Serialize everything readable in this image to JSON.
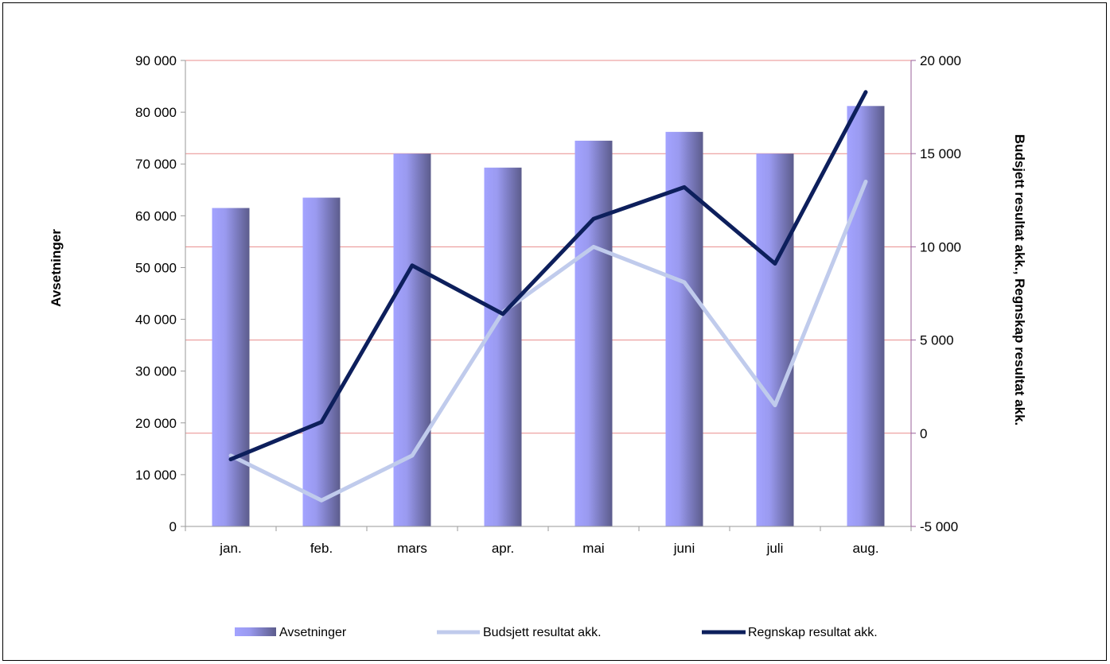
{
  "chart_data": {
    "type": "bar",
    "categories": [
      "jan.",
      "feb.",
      "mars",
      "apr.",
      "mai",
      "juni",
      "juli",
      "aug."
    ],
    "series": [
      {
        "name": "Avsetninger",
        "type": "bar",
        "axis": "left",
        "values": [
          61500,
          63500,
          72000,
          69300,
          74500,
          76200,
          72000,
          81200
        ]
      },
      {
        "name": "Budsjett resultat akk.",
        "type": "line",
        "axis": "right",
        "values": [
          -1200,
          -3600,
          -1200,
          6500,
          10000,
          8100,
          1500,
          13500
        ]
      },
      {
        "name": "Regnskap resultat akk.",
        "type": "line",
        "axis": "right",
        "values": [
          -1400,
          600,
          9000,
          6400,
          11500,
          13200,
          9100,
          18300
        ]
      }
    ],
    "y_left": {
      "label": "Avsetninger",
      "min": 0,
      "max": 90000,
      "step": 10000,
      "tick_labels": [
        "0",
        "10 000",
        "20 000",
        "30 000",
        "40 000",
        "50 000",
        "60 000",
        "70 000",
        "80 000",
        "90 000"
      ]
    },
    "y_right": {
      "label": "Budsjett resultat akk., Regnskap resultat akk.",
      "min": -5000,
      "max": 20000,
      "step": 5000,
      "tick_labels": [
        "-5 000",
        "0",
        "5 000",
        "10 000",
        "15 000",
        "20 000"
      ]
    },
    "gridlines": "right-axis, red",
    "legend_position": "bottom",
    "colors": {
      "bar_light": "#a3a3ff",
      "bar_dark": "#5c5c8c",
      "budsjett": "#c0cbec",
      "regnskap": "#0d1f5c",
      "grid": "#e88c8c",
      "right_axis": "#9a5f9a"
    }
  }
}
